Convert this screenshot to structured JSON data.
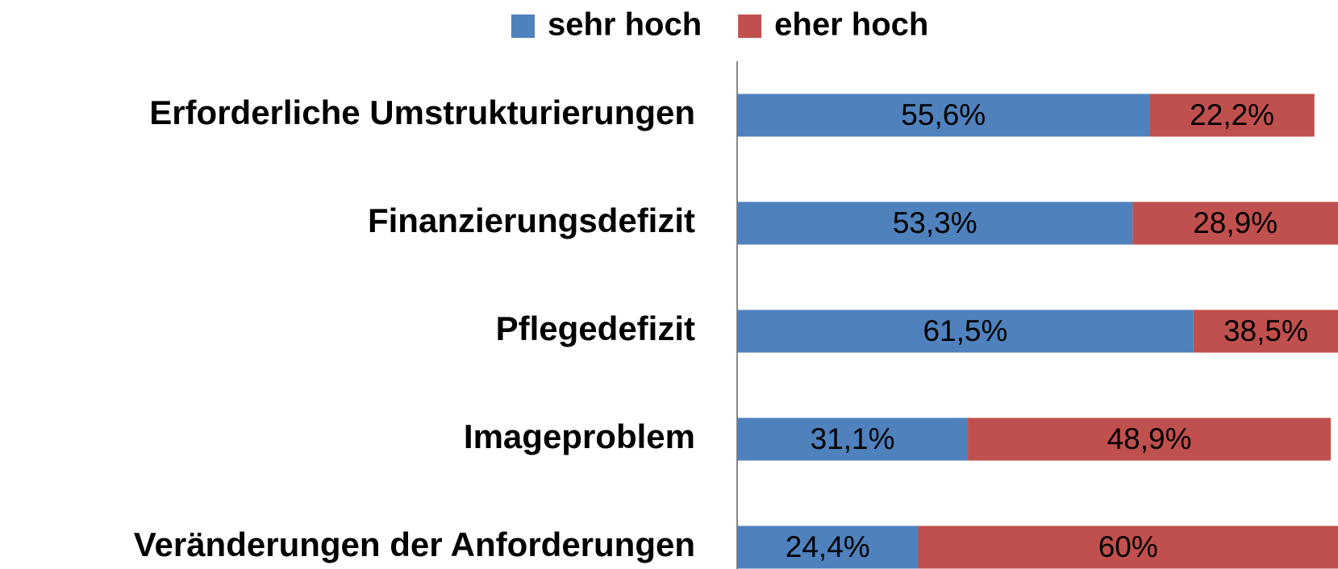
{
  "chart_data": {
    "type": "stacked_barh",
    "categories": [
      "Erforderliche Umstrukturierungen",
      "Finanzierungsdefizit",
      "Pflegedefizit",
      "Imageproblem",
      "Veränderungen der Anforderungen"
    ],
    "series": [
      {
        "name": "sehr hoch",
        "color": "#4f81bd",
        "values": [
          55.6,
          53.3,
          61.5,
          31.1,
          24.4
        ],
        "value_labels": [
          "55,6%",
          "53,3%",
          "61,5%",
          "31,1%",
          "24,4%"
        ]
      },
      {
        "name": "eher hoch",
        "color": "#c0504d",
        "values": [
          22.2,
          28.9,
          38.5,
          48.9,
          60
        ],
        "value_labels": [
          "22,2%",
          "28,9%",
          "38,5%",
          "48,9%",
          "60%"
        ]
      }
    ],
    "legend": "top"
  }
}
